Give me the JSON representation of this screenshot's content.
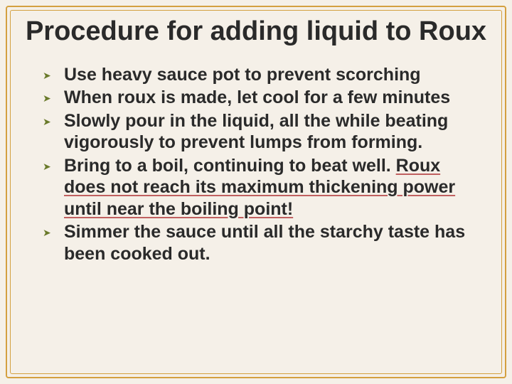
{
  "slide": {
    "title": "Procedure for adding liquid to Roux",
    "bullets": [
      {
        "text": "Use heavy sauce pot to prevent scorching"
      },
      {
        "text": "When roux is made, let cool for a few minutes"
      },
      {
        "text": "Slowly pour in the liquid, all the while beating vigorously to prevent lumps from forming."
      },
      {
        "text_a": "Bring to a boil, continuing to beat well. ",
        "text_b": "Roux does not reach its maximum thickening power until near the boiling point!"
      },
      {
        "text": "Simmer the sauce until all the starchy taste has been cooked out."
      }
    ]
  },
  "style": {
    "background_color": "#f5f0e8",
    "frame_color": "#d4a040",
    "bullet_marker_color": "#6a7a2a",
    "text_color": "#2a2a2a",
    "underline_color": "#c06060",
    "title_fontfamily": "Arial",
    "title_fontsize": 38,
    "body_fontfamily": "Comic Sans MS",
    "body_fontsize": 25
  }
}
